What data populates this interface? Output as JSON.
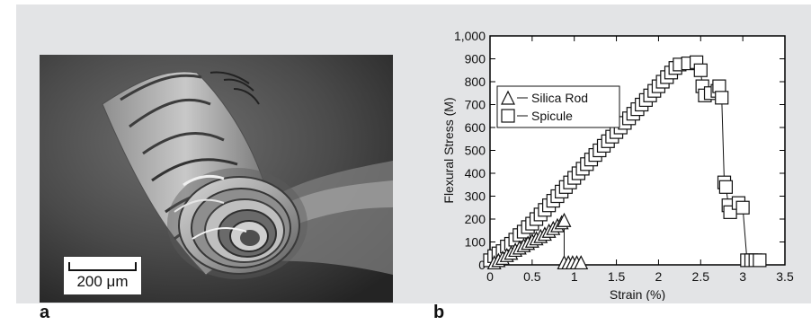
{
  "figure": {
    "panel_a_label": "a",
    "panel_b_label": "b",
    "scale_bar_text": "200 μm",
    "background_color": "#e3e4e6"
  },
  "chart_data": {
    "type": "scatter",
    "xlabel": "Strain (%)",
    "ylabel": "Flexural Stress (M)",
    "xlim": [
      0,
      3.5
    ],
    "ylim": [
      0,
      1000
    ],
    "x_ticks": [
      "0",
      "0.5",
      "1",
      "1.5",
      "2",
      "2.5",
      "3",
      "3.5"
    ],
    "y_ticks": [
      "0",
      "100",
      "200",
      "300",
      "400",
      "500",
      "600",
      "700",
      "800",
      "900",
      "1,000"
    ],
    "grid": false,
    "legend_position": "top-left",
    "series": [
      {
        "name": "Silica Rod",
        "marker": "triangle",
        "points": [
          [
            0.05,
            10
          ],
          [
            0.1,
            20
          ],
          [
            0.15,
            30
          ],
          [
            0.2,
            42
          ],
          [
            0.25,
            52
          ],
          [
            0.3,
            65
          ],
          [
            0.35,
            75
          ],
          [
            0.4,
            85
          ],
          [
            0.45,
            95
          ],
          [
            0.5,
            105
          ],
          [
            0.55,
            115
          ],
          [
            0.6,
            125
          ],
          [
            0.65,
            135
          ],
          [
            0.7,
            148
          ],
          [
            0.75,
            160
          ],
          [
            0.8,
            172
          ],
          [
            0.85,
            185
          ],
          [
            0.88,
            195
          ],
          [
            0.88,
            10
          ],
          [
            0.93,
            10
          ],
          [
            0.98,
            10
          ],
          [
            1.03,
            10
          ],
          [
            1.08,
            10
          ]
        ]
      },
      {
        "name": "Spicule",
        "marker": "square",
        "points": [
          [
            0.0,
            20
          ],
          [
            0.05,
            38
          ],
          [
            0.1,
            50
          ],
          [
            0.15,
            60
          ],
          [
            0.2,
            80
          ],
          [
            0.25,
            92
          ],
          [
            0.3,
            110
          ],
          [
            0.35,
            130
          ],
          [
            0.4,
            145
          ],
          [
            0.45,
            165
          ],
          [
            0.5,
            180
          ],
          [
            0.55,
            200
          ],
          [
            0.6,
            220
          ],
          [
            0.65,
            240
          ],
          [
            0.7,
            260
          ],
          [
            0.75,
            280
          ],
          [
            0.8,
            300
          ],
          [
            0.85,
            320
          ],
          [
            0.9,
            340
          ],
          [
            0.95,
            360
          ],
          [
            1.0,
            380
          ],
          [
            1.05,
            400
          ],
          [
            1.1,
            420
          ],
          [
            1.15,
            440
          ],
          [
            1.2,
            460
          ],
          [
            1.25,
            480
          ],
          [
            1.3,
            500
          ],
          [
            1.35,
            520
          ],
          [
            1.4,
            540
          ],
          [
            1.45,
            560
          ],
          [
            1.5,
            580
          ],
          [
            1.55,
            600
          ],
          [
            1.6,
            620
          ],
          [
            1.65,
            640
          ],
          [
            1.7,
            660
          ],
          [
            1.75,
            680
          ],
          [
            1.8,
            700
          ],
          [
            1.85,
            720
          ],
          [
            1.9,
            740
          ],
          [
            1.95,
            760
          ],
          [
            2.0,
            780
          ],
          [
            2.05,
            800
          ],
          [
            2.1,
            820
          ],
          [
            2.15,
            840
          ],
          [
            2.2,
            860
          ],
          [
            2.25,
            875
          ],
          [
            2.35,
            880
          ],
          [
            2.45,
            885
          ],
          [
            2.5,
            850
          ],
          [
            2.52,
            780
          ],
          [
            2.55,
            740
          ],
          [
            2.62,
            750
          ],
          [
            2.7,
            760
          ],
          [
            2.72,
            780
          ],
          [
            2.75,
            730
          ],
          [
            2.78,
            360
          ],
          [
            2.8,
            340
          ],
          [
            2.83,
            260
          ],
          [
            2.85,
            230
          ],
          [
            2.95,
            270
          ],
          [
            3.0,
            250
          ],
          [
            3.05,
            20
          ],
          [
            3.1,
            20
          ],
          [
            3.15,
            20
          ],
          [
            3.2,
            20
          ]
        ]
      }
    ]
  }
}
